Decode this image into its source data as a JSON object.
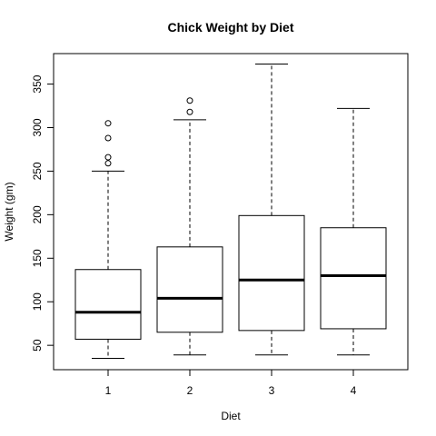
{
  "chart_data": {
    "type": "boxplot",
    "title": "Chick Weight by Diet",
    "xlabel": "Diet",
    "ylabel": "Weight (gm)",
    "ylim": [
      22,
      385
    ],
    "yticks": [
      50,
      100,
      150,
      200,
      250,
      300,
      350
    ],
    "ytick_labels": [
      "50",
      "100",
      "150",
      "200",
      "250",
      "300",
      "350"
    ],
    "categories": [
      "1",
      "2",
      "3",
      "4"
    ],
    "boxes": [
      {
        "category": "1",
        "lower_whisker": 35,
        "q1": 57,
        "median": 88,
        "q3": 137,
        "upper_whisker": 250,
        "outliers": [
          259,
          266,
          288,
          305
        ]
      },
      {
        "category": "2",
        "lower_whisker": 39,
        "q1": 65,
        "median": 104,
        "q3": 163,
        "upper_whisker": 309,
        "outliers": [
          318,
          331
        ]
      },
      {
        "category": "3",
        "lower_whisker": 39,
        "q1": 67,
        "median": 125,
        "q3": 199,
        "upper_whisker": 373,
        "outliers": []
      },
      {
        "category": "4",
        "lower_whisker": 39,
        "q1": 69,
        "median": 130,
        "q3": 185,
        "upper_whisker": 322,
        "outliers": []
      }
    ],
    "grid": false,
    "legend": "none"
  }
}
